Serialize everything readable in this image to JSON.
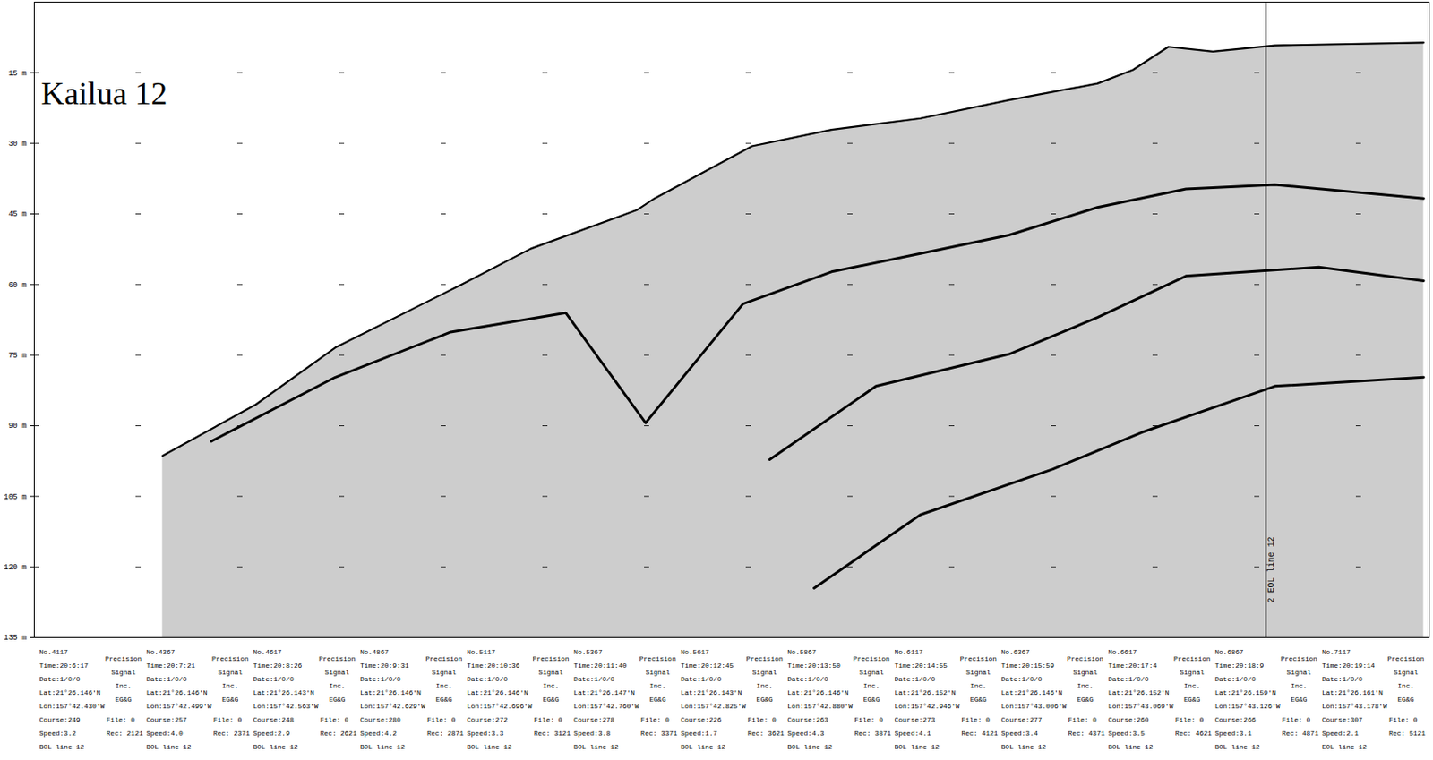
{
  "chart_data": {
    "type": "line",
    "title": "Kailua 12",
    "color": "#000000",
    "grid": true,
    "tick_labels": "y",
    "xlim": [
      4107,
      7370
    ],
    "ylim": [
      0,
      135
    ],
    "yticks": [
      {
        "value": 15,
        "label": "15 m"
      },
      {
        "value": 30,
        "label": "30 m"
      },
      {
        "value": 45,
        "label": "45 m"
      },
      {
        "value": 60,
        "label": "60 m"
      },
      {
        "value": 75,
        "label": "75 m"
      },
      {
        "value": 90,
        "label": "90 m"
      },
      {
        "value": 105,
        "label": "105 m"
      },
      {
        "value": 120,
        "label": "120 m"
      },
      {
        "value": 135,
        "label": "135 m"
      }
    ],
    "series": [
      {
        "type": "area",
        "x": [
          4407,
          4625,
          4811,
          5102,
          5268,
          5516,
          5558,
          5786,
          5972,
          6180,
          6387,
          6594,
          6677,
          6760,
          6864,
          7009,
          7357
        ],
        "values": [
          96.4,
          85.5,
          73.4,
          60.2,
          52.4,
          44.2,
          41.7,
          30.6,
          27.1,
          24.7,
          20.8,
          17.3,
          14.4,
          9.5,
          10.5,
          9.2,
          8.6
        ]
      },
      {
        "x": [
          4521,
          4811,
          5081,
          5350,
          5537,
          5765,
          5972,
          6180,
          6387,
          6594,
          6801,
          7009,
          7357
        ],
        "values": [
          93.3,
          79.7,
          70.1,
          66.0,
          89.4,
          64.1,
          57.3,
          53.4,
          49.5,
          43.6,
          39.7,
          38.8,
          41.7
        ]
      },
      {
        "x": [
          5827,
          6076,
          6387,
          6594,
          6801,
          7112,
          7357
        ],
        "values": [
          97.2,
          81.6,
          74.8,
          67.0,
          58.2,
          56.3,
          59.2
        ]
      },
      {
        "x": [
          5931,
          6180,
          6490,
          6698,
          7009,
          7357
        ],
        "values": [
          124.5,
          108.9,
          99.2,
          91.4,
          81.6,
          79.7
        ]
      }
    ],
    "annotations": [
      {
        "x": 6988,
        "text": "2 EOL line 12"
      }
    ],
    "event_marks": [
      {
        "record": 4117,
        "no": "No.4117",
        "time": "Time:20:6:17",
        "date": "Date:1/0/0",
        "lat": "Lat:21°26.146'N",
        "lon": "Lon:157°42.430'W",
        "course": "Course:249",
        "speed": "Speed:3.2",
        "line": "BOL line 12",
        "file": "File: 0",
        "rec": "Rec: 2121",
        "maker": [
          "Precision",
          "Signal",
          "Inc.",
          "EG&G"
        ]
      },
      {
        "record": 4367,
        "no": "No.4367",
        "time": "Time:20:7:21",
        "date": "Date:1/0/0",
        "lat": "Lat:21°26.146'N",
        "lon": "Lon:157°42.499'W",
        "course": "Course:257",
        "speed": "Speed:4.0",
        "line": "BOL line 12",
        "file": "File: 0",
        "rec": "Rec: 2371",
        "maker": [
          "Precision",
          "Signal",
          "Inc.",
          "EG&G"
        ]
      },
      {
        "record": 4617,
        "no": "No.4617",
        "time": "Time:20:8:26",
        "date": "Date:1/0/0",
        "lat": "Lat:21°26.143'N",
        "lon": "Lon:157°42.563'W",
        "course": "Course:248",
        "speed": "Speed:2.9",
        "line": "BOL line 12",
        "file": "File: 0",
        "rec": "Rec: 2621",
        "maker": [
          "Precision",
          "Signal",
          "Inc.",
          "EG&G"
        ]
      },
      {
        "record": 4867,
        "no": "No.4867",
        "time": "Time:20:9:31",
        "date": "Date:1/0/0",
        "lat": "Lat:21°26.146'N",
        "lon": "Lon:157°42.629'W",
        "course": "Course:280",
        "speed": "Speed:4.2",
        "line": "BOL line 12",
        "file": "File: 0",
        "rec": "Rec: 2871",
        "maker": [
          "Precision",
          "Signal",
          "Inc.",
          "EG&G"
        ]
      },
      {
        "record": 5117,
        "no": "No.5117",
        "time": "Time:20:10:36",
        "date": "Date:1/0/0",
        "lat": "Lat:21°26.146'N",
        "lon": "Lon:157°42.696'W",
        "course": "Course:272",
        "speed": "Speed:3.3",
        "line": "BOL line 12",
        "file": "File: 0",
        "rec": "Rec: 3121",
        "maker": [
          "Precision",
          "Signal",
          "Inc.",
          "EG&G"
        ]
      },
      {
        "record": 5367,
        "no": "No.5367",
        "time": "Time:20:11:40",
        "date": "Date:1/0/0",
        "lat": "Lat:21°26.147'N",
        "lon": "Lon:157°42.760'W",
        "course": "Course:278",
        "speed": "Speed:3.8",
        "line": "BOL line 12",
        "file": "File: 0",
        "rec": "Rec: 3371",
        "maker": [
          "Precision",
          "Signal",
          "Inc.",
          "EG&G"
        ]
      },
      {
        "record": 5617,
        "no": "No.5617",
        "time": "Time:20:12:45",
        "date": "Date:1/0/0",
        "lat": "Lat:21°26.143'N",
        "lon": "Lon:157°42.825'W",
        "course": "Course:226",
        "speed": "Speed:1.7",
        "line": "BOL line 12",
        "file": "File: 0",
        "rec": "Rec: 3621",
        "maker": [
          "Precision",
          "Signal",
          "Inc.",
          "EG&G"
        ]
      },
      {
        "record": 5867,
        "no": "No.5867",
        "time": "Time:20:13:50",
        "date": "Date:1/0/0",
        "lat": "Lat:21°26.146'N",
        "lon": "Lon:157°42.880'W",
        "course": "Course:263",
        "speed": "Speed:4.3",
        "line": "BOL line 12",
        "file": "File: 0",
        "rec": "Rec: 3871",
        "maker": [
          "Precision",
          "Signal",
          "Inc.",
          "EG&G"
        ]
      },
      {
        "record": 6117,
        "no": "No.6117",
        "time": "Time:20:14:55",
        "date": "Date:1/0/0",
        "lat": "Lat:21°26.152'N",
        "lon": "Lon:157°42.946'W",
        "course": "Course:273",
        "speed": "Speed:4.1",
        "line": "BOL line 12",
        "file": "File: 0",
        "rec": "Rec: 4121",
        "maker": [
          "Precision",
          "Signal",
          "Inc.",
          "EG&G"
        ]
      },
      {
        "record": 6367,
        "no": "No.6367",
        "time": "Time:20:15:59",
        "date": "Date:1/0/0",
        "lat": "Lat:21°26.146'N",
        "lon": "Lon:157°43.006'W",
        "course": "Course:277",
        "speed": "Speed:3.4",
        "line": "BOL line 12",
        "file": "File: 0",
        "rec": "Rec: 4371",
        "maker": [
          "Precision",
          "Signal",
          "Inc.",
          "EG&G"
        ]
      },
      {
        "record": 6617,
        "no": "No.6617",
        "time": "Time:20:17:4",
        "date": "Date:1/0/0",
        "lat": "Lat:21°26.152'N",
        "lon": "Lon:157°43.069'W",
        "course": "Course:260",
        "speed": "Speed:3.5",
        "line": "BOL line 12",
        "file": "File: 0",
        "rec": "Rec: 4621",
        "maker": [
          "Precision",
          "Signal",
          "Inc.",
          "EG&G"
        ]
      },
      {
        "record": 6867,
        "no": "No.6867",
        "time": "Time:20:18:9",
        "date": "Date:1/0/0",
        "lat": "Lat:21°26.159'N",
        "lon": "Lon:157°43.126'W",
        "course": "Course:266",
        "speed": "Speed:3.1",
        "line": "BOL line 12",
        "file": "File: 0",
        "rec": "Rec: 4871",
        "maker": [
          "Precision",
          "Signal",
          "Inc.",
          "EG&G"
        ]
      },
      {
        "record": 7117,
        "no": "No.7117",
        "time": "Time:20:19:14",
        "date": "Date:1/0/0",
        "lat": "Lat:21°26.161'N",
        "lon": "Lon:157°43.178'W",
        "course": "Course:307",
        "speed": "Speed:2.1",
        "line": "EOL line 12",
        "file": "File: 0",
        "rec": "Rec: 5121",
        "maker": [
          "Precision",
          "Signal",
          "Inc.",
          "EG&G"
        ]
      }
    ]
  }
}
